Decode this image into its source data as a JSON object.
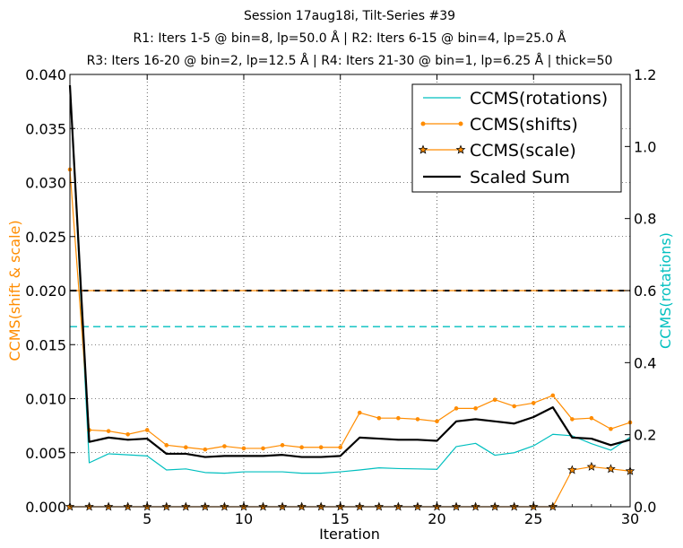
{
  "chart_data": {
    "type": "line",
    "title_lines": [
      "Session 17aug18i, Tilt-Series #39",
      "R1: Iters 1-5 @ bin=8, lp=50.0 Å | R2: Iters 6-15 @ bin=4, lp=25.0 Å",
      "R3: Iters 16-20 @ bin=2, lp=12.5 Å | R4: Iters 21-30 @ bin=1, lp=6.25 Å | thick=50"
    ],
    "xlabel": "Iteration",
    "ylabel_left": "CCMS(shift & scale)",
    "ylabel_right": "CCMS(rotations)",
    "xlim": [
      1,
      30
    ],
    "ylim_left": [
      0,
      0.04
    ],
    "ylim_right": [
      0,
      1.2
    ],
    "x_ticks": [
      "5",
      "10",
      "15",
      "20",
      "25",
      "30"
    ],
    "y_ticks_left": [
      "0.000",
      "0.005",
      "0.010",
      "0.015",
      "0.020",
      "0.025",
      "0.030",
      "0.035",
      "0.040"
    ],
    "y_ticks_right": [
      "0.0",
      "0.2",
      "0.4",
      "0.6",
      "0.8",
      "1.0",
      "1.2"
    ],
    "grid": true,
    "legend_position": "top-right",
    "x": [
      1,
      2,
      3,
      4,
      5,
      6,
      7,
      8,
      9,
      10,
      11,
      12,
      13,
      14,
      15,
      16,
      17,
      18,
      19,
      20,
      21,
      22,
      23,
      24,
      25,
      26,
      27,
      28,
      29,
      30
    ],
    "series": [
      {
        "name": "CCMS(rotations)",
        "axis": "right",
        "color": "#00bfbf",
        "values": [
          1.17,
          0.122,
          0.147,
          0.144,
          0.141,
          0.102,
          0.105,
          0.095,
          0.093,
          0.097,
          0.097,
          0.097,
          0.093,
          0.093,
          0.097,
          0.102,
          0.108,
          0.106,
          0.105,
          0.104,
          0.167,
          0.176,
          0.143,
          0.15,
          0.169,
          0.201,
          0.197,
          0.175,
          0.157,
          0.193
        ]
      },
      {
        "name": "CCMS(shifts)",
        "axis": "left",
        "color": "#ff8c00",
        "values": [
          0.0312,
          0.0071,
          0.007,
          0.0067,
          0.0071,
          0.0057,
          0.0055,
          0.0053,
          0.0056,
          0.0054,
          0.0054,
          0.0057,
          0.0055,
          0.0055,
          0.0055,
          0.0087,
          0.0082,
          0.0082,
          0.0081,
          0.0079,
          0.0091,
          0.0091,
          0.0099,
          0.0093,
          0.0096,
          0.0103,
          0.0081,
          0.0082,
          0.0072,
          0.0078
        ]
      },
      {
        "name": "CCMS(scale)",
        "axis": "left",
        "color": "#ff8c00",
        "values": [
          0,
          0,
          0,
          0,
          0,
          0,
          0,
          0,
          0,
          0,
          0,
          0,
          0,
          0,
          0,
          0,
          0,
          0,
          0,
          0,
          0,
          0,
          0,
          0,
          0,
          0,
          0.0034,
          0.0037,
          0.0035,
          0.0033
        ]
      },
      {
        "name": "Scaled Sum",
        "axis": "left",
        "color": "#000000",
        "values": [
          0.039,
          0.006,
          0.0064,
          0.0062,
          0.0063,
          0.0049,
          0.0049,
          0.0046,
          0.0047,
          0.0047,
          0.0047,
          0.0048,
          0.0046,
          0.0046,
          0.0047,
          0.0064,
          0.0063,
          0.0062,
          0.0062,
          0.0061,
          0.0079,
          0.0081,
          0.0079,
          0.0077,
          0.0083,
          0.0092,
          0.0064,
          0.0063,
          0.0057,
          0.0062
        ]
      }
    ],
    "reference_lines": [
      {
        "axis": "left",
        "value": 0.02,
        "color": "#000000"
      },
      {
        "axis": "left",
        "value": 0.02,
        "color": "#ff8c00"
      },
      {
        "axis": "right",
        "value": 0.5,
        "color": "#00bfbf"
      }
    ]
  }
}
